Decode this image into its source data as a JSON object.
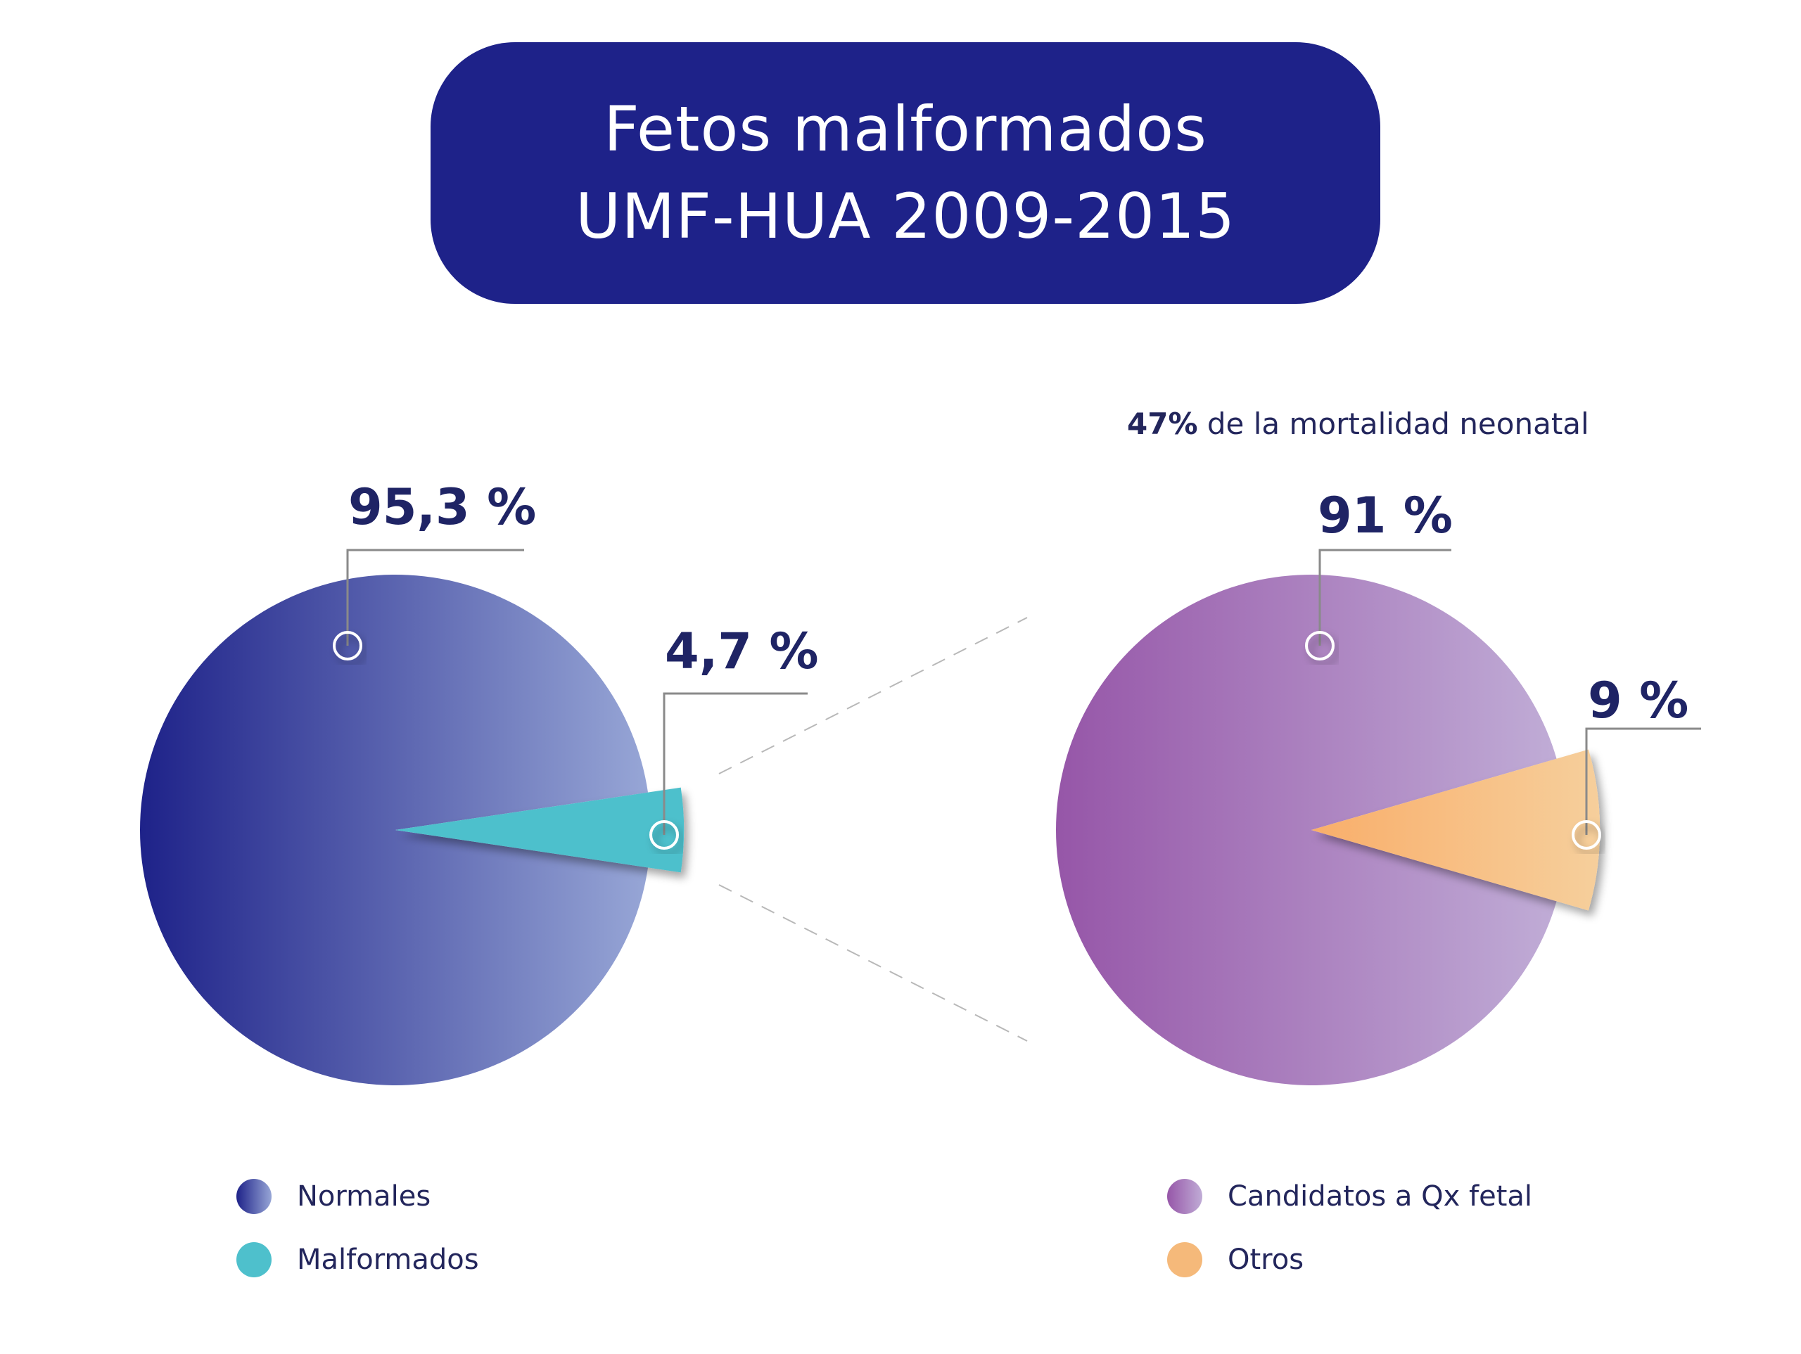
{
  "title": {
    "line1": "Fetos malformados",
    "line2": "UMF-HUA 2009-2015"
  },
  "note": {
    "bold": "47%",
    "text": " de la mortalidad neonatal"
  },
  "chart_data": [
    {
      "type": "pie",
      "slices": [
        {
          "name": "Normales",
          "value": 95.3,
          "label": "95,3 %",
          "color_start": "#1e2289",
          "color_end": "#97a6d6"
        },
        {
          "name": "Malformados",
          "value": 4.7,
          "label": "4,7 %",
          "color": "#4ec0cc",
          "exploded": true
        }
      ],
      "legend_placement": "bottom"
    },
    {
      "type": "pie",
      "slices": [
        {
          "name": "Candidatos a Qx fetal",
          "value": 91,
          "label": "91 %",
          "color_start": "#9656a8",
          "color_end": "#c0acd6"
        },
        {
          "name": "Otros",
          "value": 9,
          "label": "9 %",
          "color": "#f5b97a",
          "exploded": true
        }
      ],
      "legend_placement": "bottom"
    }
  ],
  "legend": {
    "left": [
      {
        "label": "Normales",
        "color": "#3c3e9c"
      },
      {
        "label": "Malformados",
        "color": "#4ec0cc"
      }
    ],
    "right": [
      {
        "label": "Candidatos a Qx fetal",
        "color": "#a070b6"
      },
      {
        "label": "Otros",
        "color": "#f5b97a"
      }
    ]
  }
}
